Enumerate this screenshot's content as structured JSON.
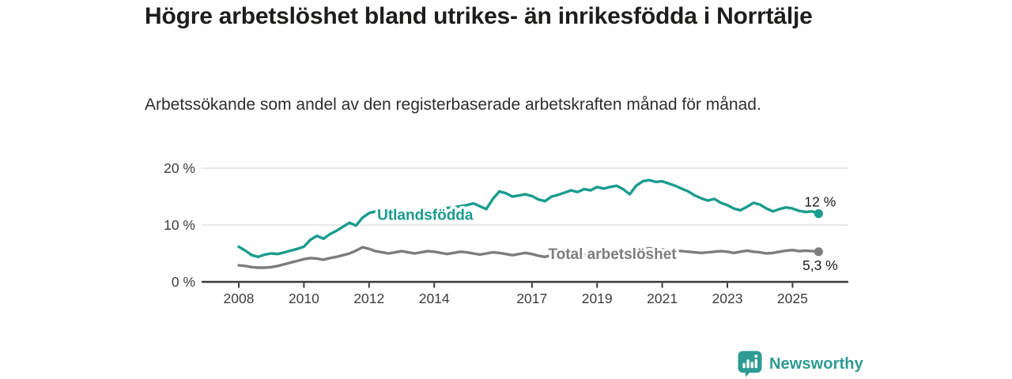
{
  "header": {
    "title": "Högre arbetslöshet bland utrikes- än inrikesfödda i Norrtälje",
    "subtitle": "Arbetssökande som andel av den registerbaserade arbetskraften månad för månad."
  },
  "footer": {
    "brand": "Newsworthy",
    "logo_icon": "newsworthy-speech-bubble-bar-chart-icon",
    "brand_color": "#2d9b93"
  },
  "colors": {
    "background": "#ffffff",
    "axis": "#3a3a3a",
    "gridline": "#d9d9d9",
    "tick_text": "#3d3d3d",
    "end_label_text": "#1b1b1b",
    "series_utlandsfodda": "#1a9c8e",
    "series_total": "#7d7d7d"
  },
  "chart_data": {
    "type": "line",
    "title": "Högre arbetslöshet bland utrikes- än inrikesfödda i Norrtälje",
    "subtitle": "Arbetssökande som andel av den registerbaserade arbetskraften månad för månad.",
    "xlabel": "",
    "ylabel": "",
    "grid": "horizontal",
    "legend_position": "inline-labels",
    "xlim": [
      2006.9,
      2026.7
    ],
    "ylim": [
      0,
      21.5
    ],
    "x_ticks": [
      2008,
      2010,
      2012,
      2014,
      2017,
      2019,
      2021,
      2023,
      2025
    ],
    "y_ticks": [
      {
        "value": 0,
        "label": "0 %"
      },
      {
        "value": 10,
        "label": "10 %"
      },
      {
        "value": 20,
        "label": "20 %"
      }
    ],
    "x_unit": "year (monthly series)",
    "y_unit": "percent",
    "series": [
      {
        "name": "Utlandsfödda",
        "color": "#1a9c8e",
        "end_label": "12 %",
        "end_label_position": "above",
        "label": {
          "text": "Utlandsfödda",
          "x": 2012.25,
          "y": 11.9
        },
        "x_start": 2008.0,
        "x_step": 0.2,
        "values": [
          6.2,
          5.5,
          4.7,
          4.4,
          4.8,
          5.0,
          4.9,
          5.2,
          5.5,
          5.8,
          6.2,
          7.4,
          8.1,
          7.6,
          8.4,
          9.0,
          9.7,
          10.4,
          9.9,
          11.3,
          12.1,
          12.4,
          11.8,
          11.5,
          11.8,
          12.0,
          12.3,
          12.4,
          12.2,
          12.4,
          12.6,
          12.8,
          13.0,
          13.1,
          13.3,
          13.5,
          13.8,
          13.3,
          12.8,
          14.6,
          15.9,
          15.6,
          15.0,
          15.2,
          15.4,
          15.1,
          14.5,
          14.2,
          15.0,
          15.3,
          15.7,
          16.1,
          15.8,
          16.3,
          16.1,
          16.7,
          16.4,
          16.7,
          16.9,
          16.3,
          15.4,
          16.9,
          17.7,
          17.9,
          17.6,
          17.7,
          17.3,
          16.9,
          16.4,
          15.9,
          15.2,
          14.7,
          14.3,
          14.6,
          13.9,
          13.5,
          12.9,
          12.6,
          13.2,
          13.9,
          13.6,
          12.9,
          12.4,
          12.8,
          13.1,
          12.9,
          12.5,
          12.3,
          12.4,
          12.0
        ]
      },
      {
        "name": "Total arbetslöshet",
        "color": "#7d7d7d",
        "end_label": "5,3 %",
        "end_label_position": "below",
        "label": {
          "text": "Total arbetslöshet",
          "x": 2017.5,
          "y": 5.0
        },
        "x_start": 2008.0,
        "x_step": 0.2,
        "values": [
          2.9,
          2.8,
          2.6,
          2.5,
          2.5,
          2.6,
          2.8,
          3.1,
          3.4,
          3.7,
          4.0,
          4.2,
          4.1,
          3.9,
          4.2,
          4.4,
          4.7,
          5.0,
          5.5,
          6.1,
          5.8,
          5.4,
          5.2,
          5.0,
          5.2,
          5.4,
          5.2,
          5.0,
          5.2,
          5.4,
          5.3,
          5.1,
          4.9,
          5.1,
          5.3,
          5.2,
          5.0,
          4.8,
          5.0,
          5.2,
          5.1,
          4.9,
          4.7,
          4.9,
          5.1,
          4.9,
          4.6,
          4.4,
          4.7,
          4.8,
          4.9,
          4.8,
          4.7,
          4.8,
          4.9,
          5.0,
          4.9,
          4.8,
          4.9,
          5.0,
          5.2,
          5.6,
          5.8,
          5.9,
          5.8,
          5.7,
          5.6,
          5.5,
          5.4,
          5.3,
          5.2,
          5.1,
          5.2,
          5.3,
          5.4,
          5.3,
          5.1,
          5.3,
          5.5,
          5.3,
          5.2,
          5.0,
          5.1,
          5.3,
          5.5,
          5.6,
          5.4,
          5.5,
          5.4,
          5.3
        ]
      }
    ]
  }
}
